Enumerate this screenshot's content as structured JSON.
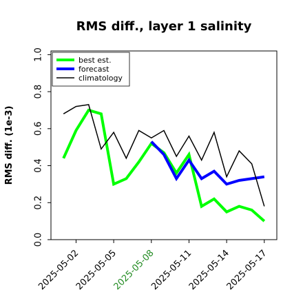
{
  "chart_data": {
    "type": "line",
    "title": "RMS diff., layer 1 salinity",
    "ylabel": "RMS diff. (1e-3)",
    "xlabel": "",
    "ylim": [
      0,
      1.02
    ],
    "yticks": [
      "0.0",
      "0.2",
      "0.4",
      "0.6",
      "0.8",
      "1.0"
    ],
    "xlim": [
      "2025-04-30",
      "2025-05-18"
    ],
    "xticks": [
      {
        "label": "2025-05-02",
        "color": "#000000"
      },
      {
        "label": "2025-05-05",
        "color": "#000000"
      },
      {
        "label": "2025-05-08",
        "color": "#228B22"
      },
      {
        "label": "2025-05-11",
        "color": "#000000"
      },
      {
        "label": "2025-05-14",
        "color": "#000000"
      },
      {
        "label": "2025-05-17",
        "color": "#000000"
      }
    ],
    "grid": false,
    "legend": "top-left",
    "series": [
      {
        "name": "best est.",
        "color": "#00ff00",
        "x": [
          "2025-05-01",
          "2025-05-02",
          "2025-05-03",
          "2025-05-04",
          "2025-05-05",
          "2025-05-06",
          "2025-05-07",
          "2025-05-08",
          "2025-05-09",
          "2025-05-10",
          "2025-05-11",
          "2025-05-12",
          "2025-05-13",
          "2025-05-14",
          "2025-05-15",
          "2025-05-16",
          "2025-05-17"
        ],
        "y": [
          0.44,
          0.59,
          0.7,
          0.68,
          0.3,
          0.33,
          0.42,
          0.52,
          0.47,
          0.36,
          0.46,
          0.18,
          0.22,
          0.15,
          0.18,
          0.16,
          0.1
        ]
      },
      {
        "name": "forecast",
        "color": "#0000ff",
        "x": [
          "2025-05-08",
          "2025-05-09",
          "2025-05-10",
          "2025-05-11",
          "2025-05-12",
          "2025-05-13",
          "2025-05-14",
          "2025-05-15",
          "2025-05-16",
          "2025-05-17"
        ],
        "y": [
          0.53,
          0.46,
          0.33,
          0.43,
          0.33,
          0.37,
          0.3,
          0.32,
          0.33,
          0.34
        ]
      },
      {
        "name": "climatology",
        "color": "#000000",
        "x": [
          "2025-05-01",
          "2025-05-02",
          "2025-05-03",
          "2025-05-04",
          "2025-05-05",
          "2025-05-06",
          "2025-05-07",
          "2025-05-08",
          "2025-05-09",
          "2025-05-10",
          "2025-05-11",
          "2025-05-12",
          "2025-05-13",
          "2025-05-14",
          "2025-05-15",
          "2025-05-16",
          "2025-05-17"
        ],
        "y": [
          0.68,
          0.72,
          0.73,
          0.49,
          0.58,
          0.44,
          0.59,
          0.55,
          0.59,
          0.45,
          0.56,
          0.43,
          0.58,
          0.34,
          0.48,
          0.41,
          0.18
        ]
      }
    ]
  }
}
